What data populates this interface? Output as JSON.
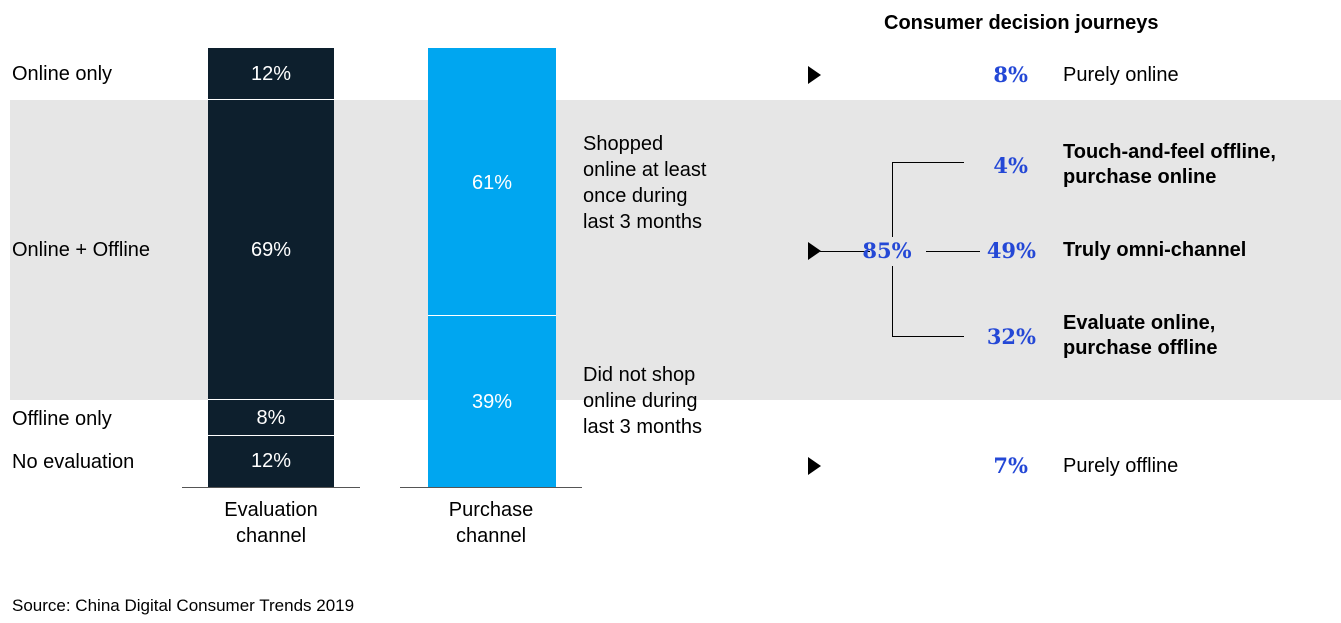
{
  "chart_data": {
    "type": "bar",
    "title": "Consumer decision journeys",
    "categories": [
      "Evaluation channel",
      "Purchase channel"
    ],
    "evaluation_segments": [
      {
        "label": "Online only",
        "value": 12,
        "text": "12%"
      },
      {
        "label": "Online + Offline",
        "value": 69,
        "text": "69%"
      },
      {
        "label": "Offline only",
        "value": 8,
        "text": "8%"
      },
      {
        "label": "No evaluation",
        "value": 12,
        "text": "12%"
      }
    ],
    "purchase_segments": [
      {
        "label": "Shopped online at least once during last 3 months",
        "value": 61,
        "text": "61%"
      },
      {
        "label": "Did not shop online during last 3 months",
        "value": 39,
        "text": "39%"
      }
    ],
    "journeys": [
      {
        "value": 8,
        "text": "8%",
        "label": "Purely online"
      },
      {
        "value": 85,
        "text": "85%",
        "label": ""
      },
      {
        "value": 4,
        "text": "4%",
        "label": "Touch-and-feel offline, purchase online"
      },
      {
        "value": 49,
        "text": "49%",
        "label": "Truly omni-channel"
      },
      {
        "value": 32,
        "text": "32%",
        "label": "Evaluate online, purchase offline"
      },
      {
        "value": 7,
        "text": "7%",
        "label": "Purely offline"
      }
    ]
  },
  "labels": {
    "row_online_only": "Online only",
    "row_online_offline": "Online + Offline",
    "row_offline_only": "Offline only",
    "row_no_evaluation": "No evaluation",
    "x_eval_line1": "Evaluation",
    "x_eval_line2": "channel",
    "x_purchase_line1": "Purchase",
    "x_purchase_line2": "channel",
    "note_shopped_1": "Shopped",
    "note_shopped_2": "online at least",
    "note_shopped_3": "once during",
    "note_shopped_4": "last 3 months",
    "note_not_1": "Did not shop",
    "note_not_2": "online during",
    "note_not_3": "last 3 months",
    "j_online": "Purely online",
    "j_touch_1": "Touch-and-feel offline,",
    "j_touch_2": "purchase online",
    "j_omni": "Truly omni-channel",
    "j_eval_1": "Evaluate online,",
    "j_eval_2": "purchase offline",
    "j_offline": "Purely offline"
  },
  "source": "Source: China Digital Consumer Trends 2019",
  "colors": {
    "evaluation_bar": "#0d1f2d",
    "purchase_bar": "#00a6f0",
    "journey_percent": "#2448d6",
    "band": "#e6e6e6"
  }
}
